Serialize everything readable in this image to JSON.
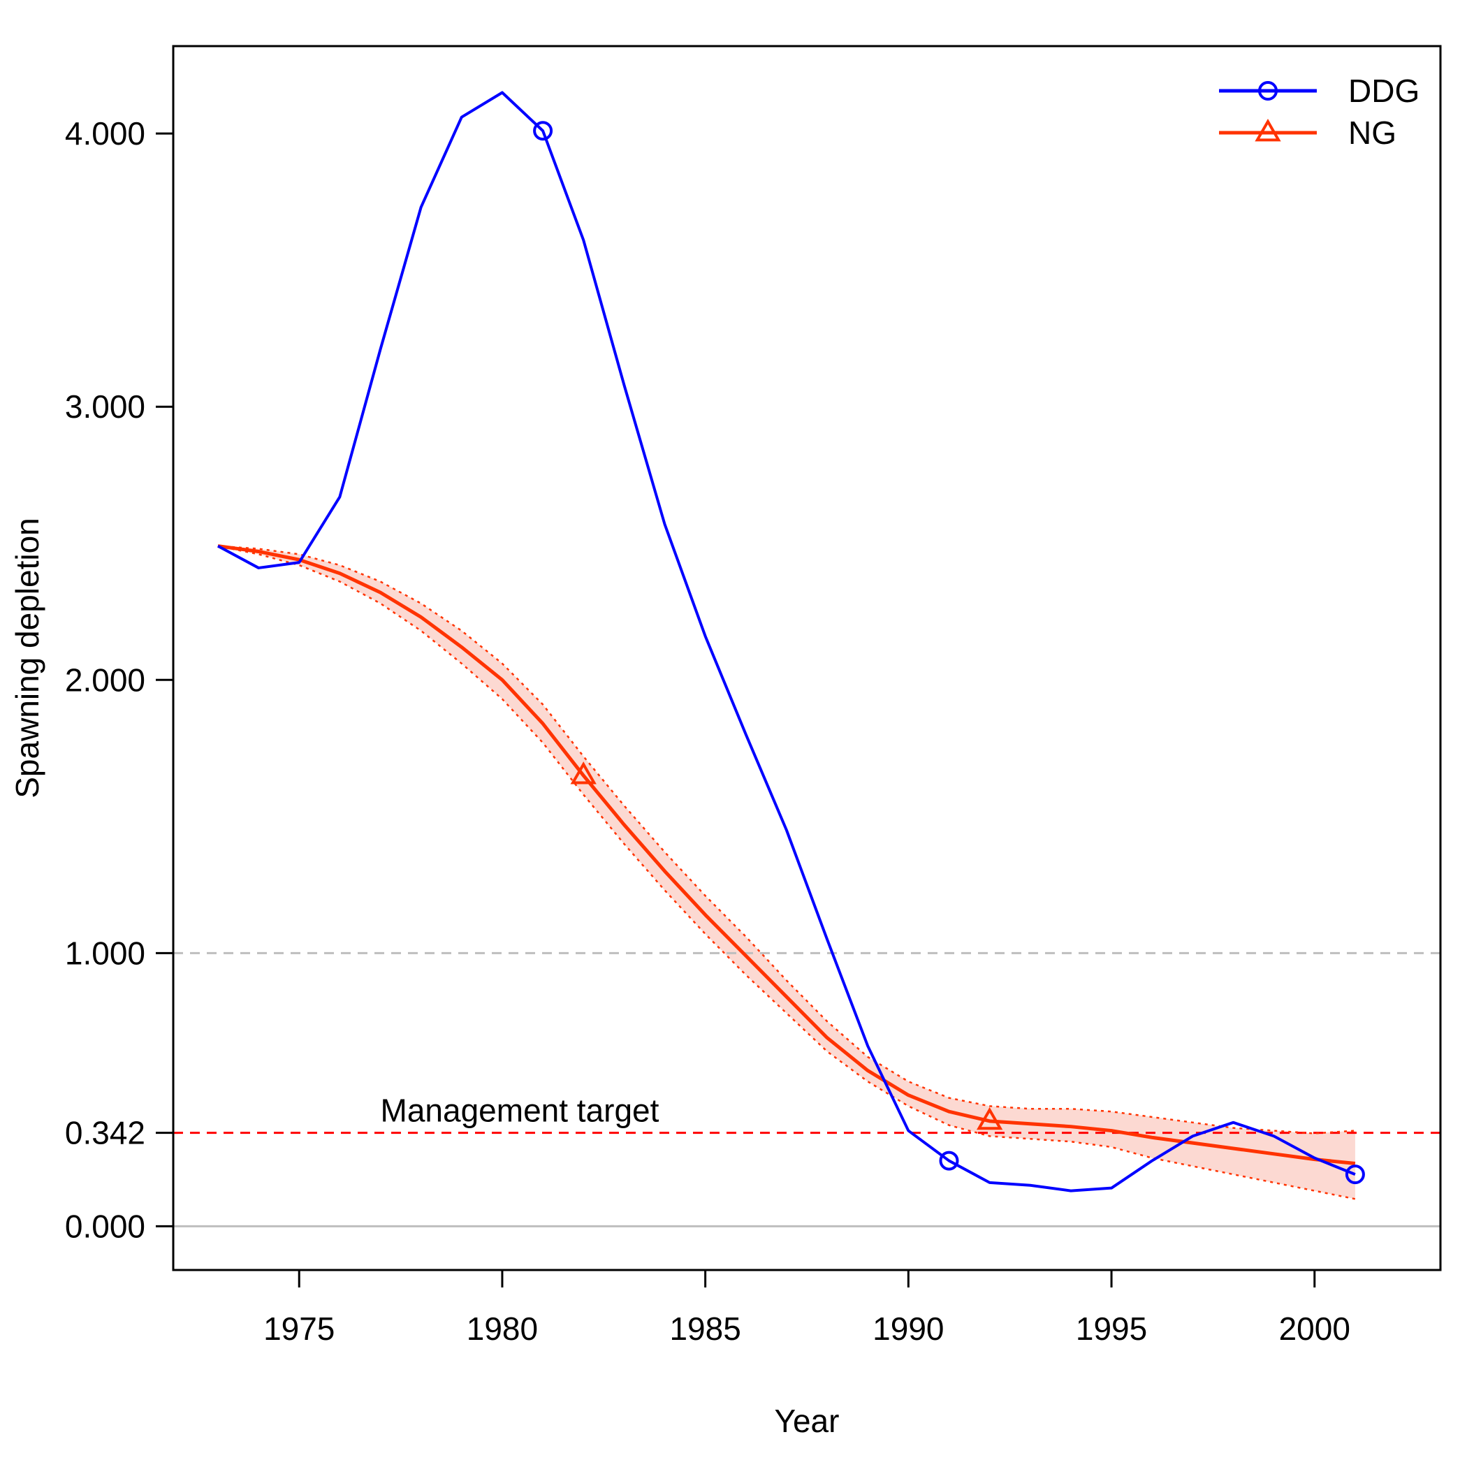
{
  "chart_data": {
    "type": "line",
    "title": "",
    "xlabel": "Year",
    "ylabel": "Spawning depletion",
    "xlim": [
      1971.9,
      2003.1
    ],
    "ylim": [
      -0.16,
      4.32
    ],
    "x_ticks": [
      1975,
      1980,
      1985,
      1990,
      1995,
      2000
    ],
    "x_tick_labels": [
      "1975",
      "1980",
      "1985",
      "1990",
      "1995",
      "2000"
    ],
    "y_ticks": [
      0.0,
      0.342,
      1.0,
      2.0,
      3.0,
      4.0
    ],
    "y_tick_labels": [
      "0.000",
      "0.342",
      "1.000",
      "2.000",
      "3.000",
      "4.000"
    ],
    "grid": false,
    "legend_position": "top-right",
    "colors": {
      "DDG": "#0000ff",
      "NG": "#ff3300",
      "band": "#fcd9d2",
      "target": "#ff0000",
      "reference": "#bebebe"
    },
    "reference_lines": [
      {
        "y": 1.0,
        "style": "dashed",
        "color": "#bebebe"
      },
      {
        "y": 0.0,
        "style": "solid",
        "color": "#bebebe"
      }
    ],
    "target_line": {
      "y": 0.342,
      "label": "Management target",
      "label_x": 1977
    },
    "x": [
      1973,
      1974,
      1975,
      1976,
      1977,
      1978,
      1979,
      1980,
      1981,
      1982,
      1983,
      1984,
      1985,
      1986,
      1987,
      1988,
      1989,
      1990,
      1991,
      1992,
      1993,
      1994,
      1995,
      1996,
      1997,
      1998,
      1999,
      2000,
      2001
    ],
    "series": [
      {
        "name": "DDG",
        "marker": "circle",
        "marker_at": [
          1981,
          1991,
          2001
        ],
        "values": [
          2.49,
          2.41,
          2.43,
          2.67,
          3.21,
          3.73,
          4.06,
          4.15,
          4.01,
          3.61,
          3.08,
          2.57,
          2.16,
          1.8,
          1.45,
          1.05,
          0.66,
          0.35,
          0.24,
          0.16,
          0.15,
          0.13,
          0.14,
          0.24,
          0.33,
          0.38,
          0.33,
          0.25,
          0.19
        ]
      },
      {
        "name": "NG",
        "marker": "triangle",
        "marker_at": [
          1982,
          1992
        ],
        "values": [
          2.49,
          2.47,
          2.44,
          2.39,
          2.32,
          2.23,
          2.12,
          2.0,
          1.84,
          1.65,
          1.47,
          1.3,
          1.14,
          0.99,
          0.84,
          0.69,
          0.57,
          0.48,
          0.42,
          0.385,
          0.375,
          0.365,
          0.35,
          0.325,
          0.305,
          0.285,
          0.265,
          0.245,
          0.23
        ],
        "lower": [
          2.49,
          2.46,
          2.42,
          2.36,
          2.28,
          2.18,
          2.06,
          1.93,
          1.77,
          1.58,
          1.4,
          1.23,
          1.07,
          0.92,
          0.78,
          0.64,
          0.53,
          0.44,
          0.37,
          0.33,
          0.32,
          0.31,
          0.29,
          0.25,
          0.22,
          0.19,
          0.16,
          0.13,
          0.1
        ],
        "upper": [
          2.49,
          2.48,
          2.46,
          2.42,
          2.36,
          2.28,
          2.18,
          2.06,
          1.91,
          1.72,
          1.54,
          1.37,
          1.21,
          1.06,
          0.9,
          0.75,
          0.62,
          0.53,
          0.47,
          0.44,
          0.43,
          0.43,
          0.42,
          0.4,
          0.38,
          0.36,
          0.35,
          0.34,
          0.35
        ]
      }
    ]
  }
}
